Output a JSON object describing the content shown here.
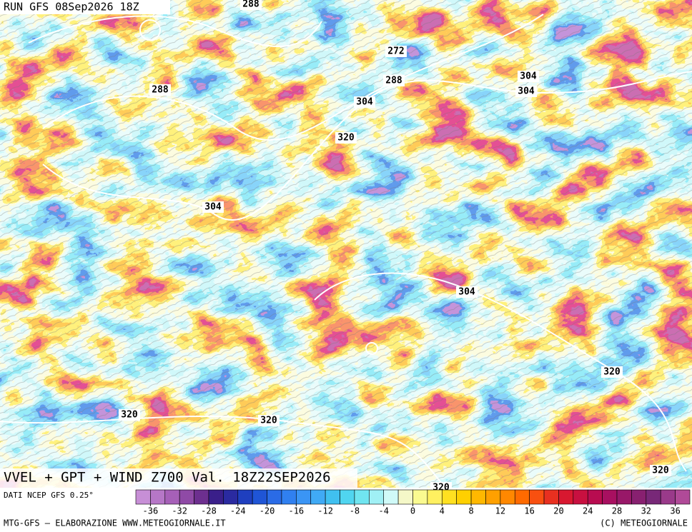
{
  "header": {
    "run": "RUN GFS 08Sep2026 18Z"
  },
  "map": {
    "title": "VVEL + GPT + WIND Z700 Val. 18Z22SEP2026",
    "contour_labels": [
      288,
      272,
      288,
      288,
      304,
      304,
      304,
      320,
      304,
      304,
      320,
      320,
      320,
      320,
      320
    ]
  },
  "colorbar": {
    "source": "DATI NCEP GFS 0.25°",
    "lim": [
      -38,
      38
    ],
    "ticks": [
      -36,
      -32,
      -28,
      -24,
      -20,
      -16,
      -12,
      -8,
      -4,
      0,
      4,
      8,
      12,
      16,
      20,
      24,
      28,
      32,
      36
    ],
    "colors": [
      "#c78fd6",
      "#b677c7",
      "#a660b8",
      "#8f4aa6",
      "#6d2f8f",
      "#3a1f8a",
      "#2a2aa0",
      "#1f3fbf",
      "#1f55d6",
      "#2a6be6",
      "#3080f0",
      "#3a95f5",
      "#40aaf5",
      "#40c0f0",
      "#50d5f0",
      "#70e5f0",
      "#a0f0f5",
      "#d0faf8",
      "#f5f8c8",
      "#fafa90",
      "#fff060",
      "#ffe020",
      "#ffd000",
      "#ffb800",
      "#ffa000",
      "#ff8800",
      "#ff6a00",
      "#f85010",
      "#e83020",
      "#d81830",
      "#c81040",
      "#b80c50",
      "#a81060",
      "#981868",
      "#882070",
      "#782878",
      "#9a3a8a",
      "#b04a98"
    ]
  },
  "footer": {
    "left": "MTG-GFS — ELABORAZIONE WWW.METEOGIORNALE.IT",
    "right": "(C) METEOGIORNALE"
  }
}
